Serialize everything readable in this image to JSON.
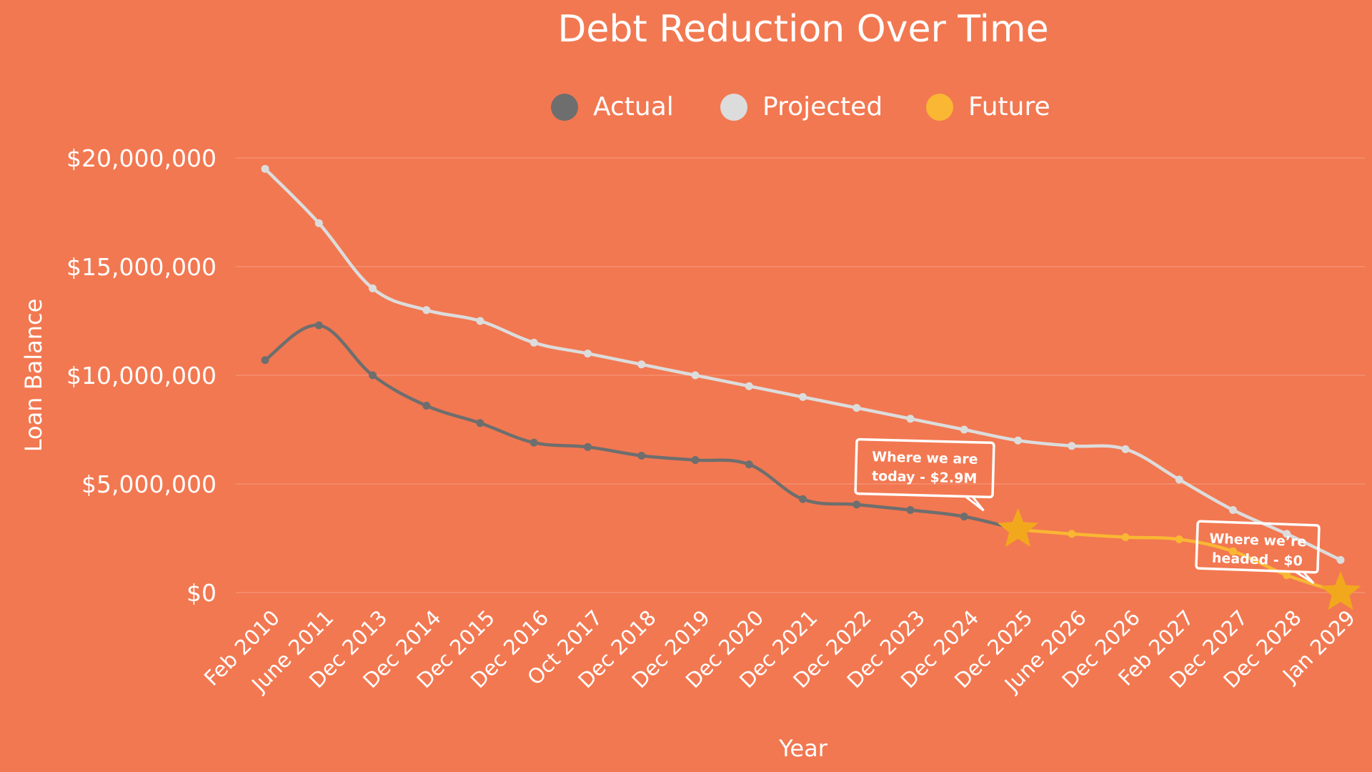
{
  "chart_data": {
    "type": "line",
    "title": "Debt Reduction Over Time",
    "xlabel": "Year",
    "ylabel": "Loan Balance",
    "ylim": [
      0,
      20000000
    ],
    "yticks": [
      "$0",
      "$5,000,000",
      "$10,000,000",
      "$15,000,000",
      "$20,000,000"
    ],
    "grid": true,
    "legend_position": "top-center",
    "categories": [
      "Feb 2010",
      "June 2011",
      "Dec 2013",
      "Dec 2014",
      "Dec 2015",
      "Dec 2016",
      "Oct 2017",
      "Dec 2018",
      "Dec 2019",
      "Dec 2020",
      "Dec 2021",
      "Dec 2022",
      "Dec 2023",
      "Dec 2024",
      "Dec 2025",
      "June 2026",
      "Dec 2026",
      "Feb 2027",
      "Dec 2027",
      "Dec 2028",
      "Jan 2029"
    ],
    "series": [
      {
        "name": "Actual",
        "color": "#6E6E6E",
        "values": [
          10700000,
          12300000,
          10000000,
          8600000,
          7800000,
          6900000,
          6700000,
          6300000,
          6100000,
          5900000,
          4300000,
          4050000,
          3800000,
          3500000,
          2900000,
          null,
          null,
          null,
          null,
          null,
          null
        ]
      },
      {
        "name": "Projected",
        "color": "#DCDCDC",
        "values": [
          19500000,
          17000000,
          14000000,
          13000000,
          12500000,
          11500000,
          11000000,
          10500000,
          10000000,
          9500000,
          9000000,
          8500000,
          8000000,
          7500000,
          7000000,
          6750000,
          6600000,
          5200000,
          3800000,
          2700000,
          1500000
        ]
      },
      {
        "name": "Future",
        "color": "#F9B733",
        "values": [
          null,
          null,
          null,
          null,
          null,
          null,
          null,
          null,
          null,
          null,
          null,
          null,
          null,
          null,
          2900000,
          2700000,
          2550000,
          2450000,
          1900000,
          800000,
          0
        ]
      }
    ],
    "annotations": [
      {
        "text_line1": "Where we are",
        "text_line2": "today - $2.9M",
        "category": "Dec 2025",
        "value": 2900000
      },
      {
        "text_line1": "Where we’re",
        "text_line2": "headed - $0",
        "category": "Jan 2029",
        "value": 0
      }
    ]
  }
}
